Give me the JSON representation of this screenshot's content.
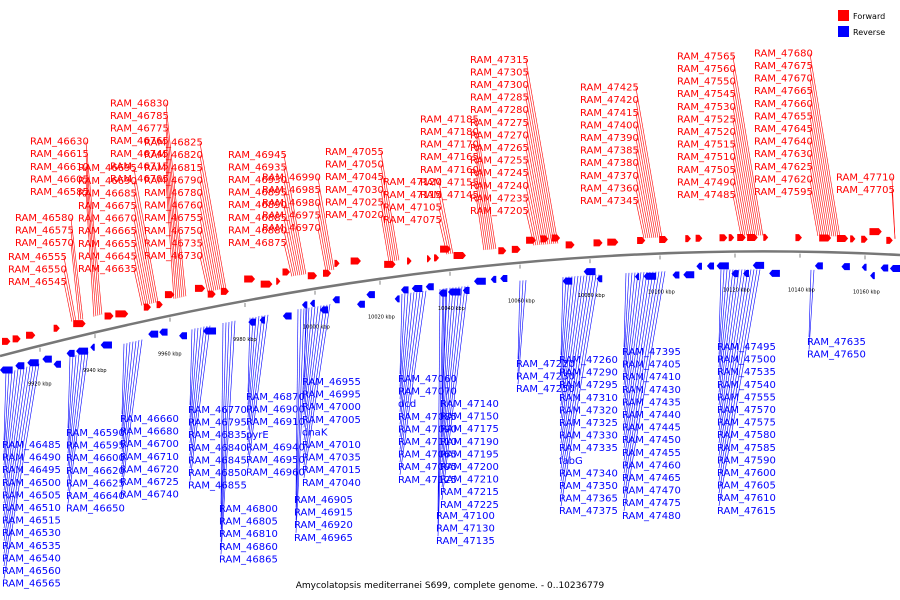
{
  "caption": "Amycolatopsis mediterranei S699, complete genome. - 0..10236779",
  "legend": [
    {
      "label": "Forward",
      "color": "#ff0000"
    },
    {
      "label": "Reverse",
      "color": "#0000ff"
    }
  ],
  "colors": {
    "forward": "#ff0000",
    "reverse": "#0000ff",
    "backbone": "#777777"
  },
  "ticks": [
    "9920 kbp",
    "9940 kbp",
    "9960 kbp",
    "9980 kbp",
    "10000 kbp",
    "10020 kbp",
    "10040 kbp",
    "10060 kbp",
    "10080 kbp",
    "10100 kbp",
    "10120 kbp",
    "10140 kbp",
    "10160 kbp"
  ],
  "forward_columns": [
    [
      "RAM_46545",
      "RAM_46550",
      "RAM_46555"
    ],
    [
      "RAM_46570",
      "RAM_46575",
      "RAM_46580"
    ],
    [
      "RAM_46585",
      "RAM_46605",
      "RAM_46610",
      "RAM_46615",
      "RAM_46630"
    ],
    [
      "RAM_46635",
      "RAM_46645",
      "RAM_46655",
      "RAM_46665",
      "RAM_46670",
      "RAM_46675",
      "RAM_46685",
      "RAM_46690",
      "RAM_46695"
    ],
    [
      "RAM_46705",
      "RAM_46715",
      "RAM_46745",
      "RAM_46765",
      "RAM_46775",
      "RAM_46785",
      "RAM_46830"
    ],
    [
      "RAM_46730",
      "RAM_46735",
      "RAM_46750",
      "RAM_46755",
      "RAM_46760",
      "RAM_46780",
      "RAM_46790",
      "RAM_46815",
      "RAM_46820",
      "RAM_46825"
    ],
    [
      "RAM_46875",
      "RAM_46880",
      "RAM_46885",
      "RAM_46890",
      "RAM_46895",
      "RAM_46930",
      "RAM_46935",
      "RAM_46945"
    ],
    [
      "RAM_46970",
      "RAM_46975",
      "RAM_46980",
      "RAM_46985",
      "RAM_46990"
    ],
    [
      "RAM_47020",
      "RAM_47025",
      "RAM_47030",
      "RAM_47045",
      "RAM_47050",
      "RAM_47055"
    ],
    [
      "RAM_47075",
      "RAM_47105",
      "RAM_47115",
      "RAM_47120"
    ],
    [
      "RAM_47145",
      "RAM_47155",
      "RAM_47160",
      "RAM_47165",
      "RAM_47170",
      "RAM_47180",
      "RAM_47185"
    ],
    [
      "RAM_47205",
      "RAM_47235",
      "RAM_47240",
      "RAM_47245",
      "RAM_47255",
      "RAM_47265",
      "RAM_47270",
      "RAM_47275",
      "RAM_47280",
      "RAM_47285",
      "RAM_47300",
      "RAM_47305",
      "RAM_47315"
    ],
    [
      "RAM_47345",
      "RAM_47360",
      "RAM_47370",
      "RAM_47380",
      "RAM_47385",
      "RAM_47390",
      "RAM_47400",
      "RAM_47415",
      "RAM_47420",
      "RAM_47425"
    ],
    [
      "RAM_47485",
      "RAM_47490",
      "RAM_47505",
      "RAM_47510",
      "RAM_47515",
      "RAM_47520",
      "RAM_47525",
      "RAM_47530",
      "RAM_47545",
      "RAM_47550",
      "RAM_47560",
      "RAM_47565"
    ],
    [
      "RAM_47595",
      "RAM_47620",
      "RAM_47625",
      "RAM_47630",
      "RAM_47640",
      "RAM_47645",
      "RAM_47655",
      "RAM_47660",
      "RAM_47665",
      "RAM_47670",
      "RAM_47675",
      "RAM_47680"
    ],
    [
      "RAM_47705",
      "RAM_47710"
    ]
  ],
  "reverse_columns": [
    [
      "RAM_46485",
      "RAM_46490",
      "RAM_46495",
      "RAM_46500",
      "RAM_46505",
      "RAM_46510",
      "RAM_46515",
      "RAM_46530",
      "RAM_46535",
      "RAM_46540",
      "RAM_46560",
      "RAM_46565"
    ],
    [
      "RAM_46590",
      "RAM_46595",
      "RAM_46600",
      "RAM_46620",
      "RAM_46625",
      "RAM_46640",
      "RAM_46650"
    ],
    [
      "RAM_46660",
      "RAM_46680",
      "RAM_46700",
      "RAM_46710",
      "RAM_46720",
      "RAM_46725",
      "RAM_46740"
    ],
    [
      "RAM_46770",
      "RAM_46795",
      "RAM_46835",
      "RAM_46840",
      "RAM_46845",
      "RAM_46850",
      "RAM_46855"
    ],
    [
      "RAM_46800",
      "RAM_46805",
      "RAM_46810",
      "RAM_46860",
      "RAM_46865"
    ],
    [
      "RAM_46870",
      "RAM_46900",
      "RAM_46910",
      "pyrE",
      "RAM_46940",
      "RAM_46950",
      "RAM_46960"
    ],
    [
      "RAM_46905",
      "RAM_46915",
      "RAM_46920",
      "RAM_46965"
    ],
    [
      "RAM_46955",
      "RAM_46995",
      "RAM_47000",
      "RAM_47005",
      "dnaK",
      "RAM_47010",
      "RAM_47035",
      "RAM_47015",
      "RAM_47040"
    ],
    [
      "RAM_47060",
      "RAM_47070",
      "dcd",
      "RAM_47085",
      "RAM_47090",
      "RAM_47110",
      "RAM_47065",
      "RAM_47095",
      "RAM_47125"
    ],
    [
      "RAM_47100",
      "RAM_47130",
      "RAM_47135"
    ],
    [
      "RAM_47140",
      "RAM_47150",
      "RAM_47175",
      "RAM_47190",
      "RAM_47195",
      "RAM_47200",
      "RAM_47210",
      "RAM_47215",
      "RAM_47225"
    ],
    [
      "RAM_47220",
      "RAM_47230",
      "RAM_47250"
    ],
    [
      "RAM_47260",
      "RAM_47290",
      "RAM_47295",
      "RAM_47310",
      "RAM_47320",
      "RAM_47325",
      "RAM_47330",
      "RAM_47335",
      "fabG",
      "RAM_47340",
      "RAM_47350",
      "RAM_47365",
      "RAM_47375"
    ],
    [
      "RAM_47395",
      "RAM_47405",
      "RAM_47410",
      "RAM_47430",
      "RAM_47435",
      "RAM_47440",
      "RAM_47445",
      "RAM_47450",
      "RAM_47455",
      "RAM_47460",
      "RAM_47465",
      "RAM_47470",
      "RAM_47475",
      "RAM_47480"
    ],
    [
      "RAM_47495",
      "RAM_47500",
      "RAM_47535",
      "RAM_47540",
      "RAM_47555",
      "RAM_47570",
      "RAM_47575",
      "RAM_47580",
      "RAM_47585",
      "RAM_47590",
      "RAM_47600",
      "RAM_47605",
      "RAM_47610",
      "RAM_47615"
    ],
    [
      "RAM_47635",
      "RAM_47650"
    ]
  ]
}
